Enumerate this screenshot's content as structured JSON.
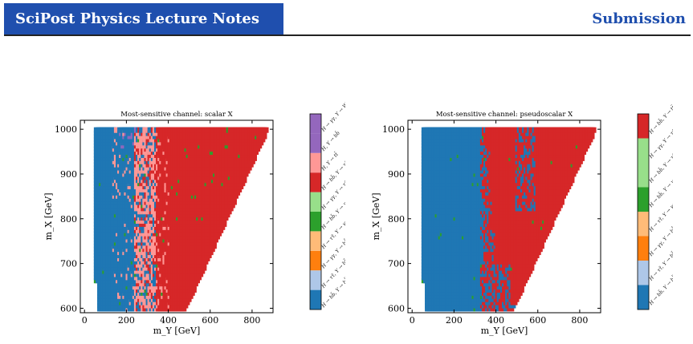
{
  "header": {
    "journal": "SciPost Physics Lecture Notes",
    "status": "Submission",
    "accent": "#1f4fae"
  },
  "chart_data": [
    {
      "type": "heatmap",
      "title": "Most-sensitive channel: scalar X",
      "xlabel": "m_Y [GeV]",
      "ylabel": "m_X [GeV]",
      "xlim": [
        -20,
        900
      ],
      "ylim": [
        590,
        1020
      ],
      "xticks": [
        "0",
        "200",
        "400",
        "600",
        "800"
      ],
      "yticks": [
        "600",
        "700",
        "800",
        "900",
        "1000"
      ],
      "colorbar": [
        {
          "label": "H → bb̄, Y → bb̄",
          "color": "#1f77b4"
        },
        {
          "label": "H → ττ̄, Y → bb̄",
          "color": "#aec7e8"
        },
        {
          "label": "H → γγ, Y → bb̄",
          "color": "#ff7f0e"
        },
        {
          "label": "H → ττ̄, Y → γγ",
          "color": "#ffbb78"
        },
        {
          "label": "H → bb̄, Y → γγ",
          "color": "#2ca02c"
        },
        {
          "label": "H → γγ, Y → ττ̄",
          "color": "#98df8a"
        },
        {
          "label": "H → bb̄, Y → ττ̄",
          "color": "#d62728"
        },
        {
          "label": "H, Y → tt̄",
          "color": "#ff9896"
        },
        {
          "label": "H, Y → bb̄",
          "color": "#9467bd"
        },
        {
          "label": "H → γγ, Y → W⁺W⁻",
          "color": "#9467bd"
        }
      ],
      "regions": [
        {
          "channel": "H → bb̄, Y → bb̄",
          "m_Y_range": [
            0,
            150
          ],
          "m_X_range": [
            600,
            1000
          ]
        },
        {
          "channel": "H → bb̄, Y → bb̄",
          "m_Y_range": [
            150,
            250
          ],
          "m_X_range": [
            600,
            1000
          ]
        },
        {
          "channel": "H, Y → tt̄",
          "m_Y_range": [
            250,
            350
          ],
          "m_X_range": [
            600,
            1000
          ]
        },
        {
          "channel": "H → bb̄, Y → ττ̄",
          "m_Y_range": [
            350,
            880
          ],
          "m_X_range": [
            600,
            1000
          ]
        }
      ]
    },
    {
      "type": "heatmap",
      "title": "Most-sensitive channel: pseudoscalar X",
      "xlabel": "m_Y [GeV]",
      "ylabel": "m_X [GeV]",
      "xlim": [
        -20,
        900
      ],
      "ylim": [
        590,
        1020
      ],
      "xticks": [
        "0",
        "200",
        "400",
        "600",
        "800"
      ],
      "yticks": [
        "600",
        "700",
        "800",
        "900",
        "1000"
      ],
      "colorbar": [
        {
          "label": "H → bb̄, Y → bb̄",
          "color": "#1f77b4"
        },
        {
          "label": "H → ττ̄, Y → bb̄",
          "color": "#aec7e8"
        },
        {
          "label": "H → γγ, Y → bb̄",
          "color": "#ff7f0e"
        },
        {
          "label": "H → ττ̄, Y → γγ",
          "color": "#ffbb78"
        },
        {
          "label": "H → bb̄, Y → γγ",
          "color": "#2ca02c"
        },
        {
          "label": "H → bb̄, Y → ττ̄",
          "color": "#98df8a"
        },
        {
          "label": "H → γγ, Y → ττ̄",
          "color": "#98df8a"
        },
        {
          "label": "H → bb̄, Y → tt̄",
          "color": "#d62728"
        }
      ],
      "regions": [
        {
          "channel": "H → bb̄, Y → bb̄",
          "m_Y_range": [
            0,
            350
          ],
          "m_X_range": [
            600,
            1000
          ]
        },
        {
          "channel": "H → bb̄, Y → tt̄",
          "m_Y_range": [
            350,
            880
          ],
          "m_X_range": [
            600,
            1000
          ]
        }
      ]
    }
  ]
}
